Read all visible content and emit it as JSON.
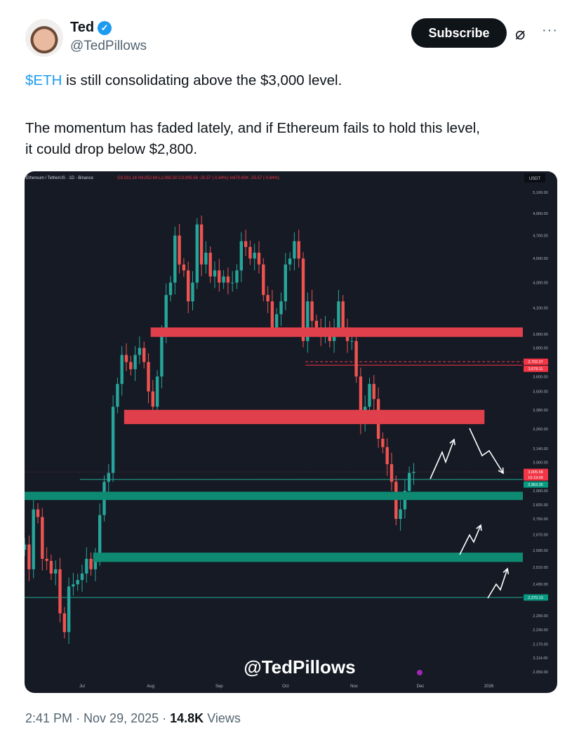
{
  "tweet": {
    "author_name": "Ted",
    "verified_icon": "verified-badge-icon",
    "handle": "@TedPillows",
    "subscribe_label": "Subscribe",
    "more_icon": "more-icon",
    "cashtag": "$ETH",
    "line1_rest": " is still consolidating above the $3,000 level.",
    "line2": "The momentum has faded lately, and if Ethereum fails to hold this level,",
    "line3": "it could drop below $2,800.",
    "time": "2:41 PM",
    "date": "Nov 29, 2025",
    "views_count": "14.8K",
    "views_label": "Views"
  },
  "chart_data": {
    "type": "candlestick",
    "header": "Ethereum / TetherUS · 1D · Binance",
    "ohlc_text": "O3,031.14 H3,052.64 L2,992.50 C3,005.58 -25.57 (-0.84%) Vol70.83K -25.57 (-0.84%)",
    "currency": "USDT",
    "y_scale": "log",
    "ylim": [
      2059,
      5100
    ],
    "y_ticks": [
      "5,100.00",
      "4,900.00",
      "4,700.00",
      "4,500.00",
      "4,300.00",
      "4,100.00",
      "3,900.00",
      "3,800.00",
      "3,600.00",
      "3,500.00",
      "3,380.00",
      "3,260.00",
      "3,140.00",
      "3,060.00",
      "2,900.00",
      "2,825.00",
      "2,750.00",
      "2,670.00",
      "2,590.00",
      "2,510.00",
      "2,430.00",
      "2,290.00",
      "2,230.00",
      "2,170.00",
      "2,114.00",
      "2,059.00"
    ],
    "x_ticks": [
      [
        "2025-07-01",
        "Jul"
      ],
      [
        "2025-08-01",
        "Aug"
      ],
      [
        "2025-09-01",
        "Sep"
      ],
      [
        "2025-10-01",
        "Oct"
      ],
      [
        "2025-11-01",
        "Nov"
      ],
      [
        "2025-12-01",
        "Dec"
      ],
      [
        "2026-01-01",
        "2026"
      ]
    ],
    "xlim": [
      "2025-06-05",
      "2026-01-25"
    ],
    "price_labels": [
      {
        "text": "3,702.07",
        "value": 3702.07,
        "color": "#f23645"
      },
      {
        "text": "3,678.11",
        "value": 3678.11,
        "color": "#f23645"
      },
      {
        "text": "3,005.58",
        "value": 3005.58,
        "color": "#f23645",
        "sub": "15:19:09"
      },
      {
        "text": "2,963.35",
        "value": 2963.35,
        "color": "#089981"
      },
      {
        "text": "2,370.13",
        "value": 2370.13,
        "color": "#089981"
      }
    ],
    "zones": [
      {
        "type": "resistance",
        "from": "2025-08-01",
        "low": 3880,
        "high": 3950,
        "color": "#e0404b"
      },
      {
        "type": "resistance",
        "from": "2025-07-20",
        "to": "2025-12-30",
        "low": 3290,
        "high": 3380,
        "color": "#e0404b"
      },
      {
        "type": "support",
        "from": "2025-06-05",
        "low": 2850,
        "high": 2895,
        "color": "#0f8a72"
      },
      {
        "type": "support",
        "from": "2025-07-06",
        "low": 2535,
        "high": 2580,
        "color": "#0f8a72"
      }
    ],
    "lines": [
      {
        "value": 3702.07,
        "from": "2025-10-10",
        "style": "dashed",
        "color": "#f23645"
      },
      {
        "value": 3678.11,
        "from": "2025-10-10",
        "style": "solid",
        "color": "#f23645"
      },
      {
        "value": 2963.35,
        "from": "2025-06-30",
        "style": "solid",
        "color": "#22ab94"
      },
      {
        "value": 2370.13,
        "from": "2025-06-05",
        "style": "solid",
        "color": "#22ab94"
      },
      {
        "value": 3005.58,
        "from": "2025-06-05",
        "style": "dotted",
        "color": "#7a3b44"
      }
    ],
    "closes": [
      [
        "2025-06-05",
        2620
      ],
      [
        "2025-06-07",
        2500
      ],
      [
        "2025-06-09",
        2800
      ],
      [
        "2025-06-11",
        2760
      ],
      [
        "2025-06-13",
        2550
      ],
      [
        "2025-06-15",
        2540
      ],
      [
        "2025-06-17",
        2480
      ],
      [
        "2025-06-19",
        2500
      ],
      [
        "2025-06-21",
        2300
      ],
      [
        "2025-06-23",
        2220
      ],
      [
        "2025-06-25",
        2420
      ],
      [
        "2025-06-27",
        2430
      ],
      [
        "2025-06-29",
        2450
      ],
      [
        "2025-07-01",
        2480
      ],
      [
        "2025-07-03",
        2550
      ],
      [
        "2025-07-05",
        2500
      ],
      [
        "2025-07-07",
        2560
      ],
      [
        "2025-07-09",
        2770
      ],
      [
        "2025-07-11",
        2950
      ],
      [
        "2025-07-13",
        3000
      ],
      [
        "2025-07-15",
        3400
      ],
      [
        "2025-07-17",
        3550
      ],
      [
        "2025-07-19",
        3750
      ],
      [
        "2025-07-21",
        3700
      ],
      [
        "2025-07-23",
        3650
      ],
      [
        "2025-07-25",
        3750
      ],
      [
        "2025-07-27",
        3800
      ],
      [
        "2025-07-29",
        3700
      ],
      [
        "2025-07-31",
        3500
      ],
      [
        "2025-08-02",
        3400
      ],
      [
        "2025-08-04",
        3600
      ],
      [
        "2025-08-06",
        3900
      ],
      [
        "2025-08-08",
        4200
      ],
      [
        "2025-08-10",
        4300
      ],
      [
        "2025-08-12",
        4700
      ],
      [
        "2025-08-14",
        4450
      ],
      [
        "2025-08-16",
        4400
      ],
      [
        "2025-08-18",
        4150
      ],
      [
        "2025-08-20",
        4300
      ],
      [
        "2025-08-22",
        4800
      ],
      [
        "2025-08-24",
        4450
      ],
      [
        "2025-08-26",
        4550
      ],
      [
        "2025-08-28",
        4350
      ],
      [
        "2025-08-30",
        4400
      ],
      [
        "2025-09-01",
        4300
      ],
      [
        "2025-09-03",
        4350
      ],
      [
        "2025-09-05",
        4300
      ],
      [
        "2025-09-07",
        4300
      ],
      [
        "2025-09-09",
        4400
      ],
      [
        "2025-09-11",
        4650
      ],
      [
        "2025-09-13",
        4600
      ],
      [
        "2025-09-15",
        4500
      ],
      [
        "2025-09-17",
        4550
      ],
      [
        "2025-09-19",
        4450
      ],
      [
        "2025-09-21",
        4200
      ],
      [
        "2025-09-23",
        4150
      ],
      [
        "2025-09-25",
        3950
      ],
      [
        "2025-09-27",
        4050
      ],
      [
        "2025-09-29",
        4150
      ],
      [
        "2025-10-01",
        4450
      ],
      [
        "2025-10-03",
        4500
      ],
      [
        "2025-10-05",
        4650
      ],
      [
        "2025-10-07",
        4500
      ],
      [
        "2025-10-09",
        3850
      ],
      [
        "2025-10-11",
        4150
      ],
      [
        "2025-10-13",
        4000
      ],
      [
        "2025-10-15",
        3950
      ],
      [
        "2025-10-17",
        3900
      ],
      [
        "2025-10-19",
        3950
      ],
      [
        "2025-10-21",
        3850
      ],
      [
        "2025-10-23",
        3950
      ],
      [
        "2025-10-25",
        4150
      ],
      [
        "2025-10-27",
        3950
      ],
      [
        "2025-10-29",
        3850
      ],
      [
        "2025-10-31",
        3850
      ],
      [
        "2025-11-02",
        3600
      ],
      [
        "2025-11-04",
        3300
      ],
      [
        "2025-11-06",
        3400
      ],
      [
        "2025-11-08",
        3550
      ],
      [
        "2025-11-10",
        3450
      ],
      [
        "2025-11-12",
        3200
      ],
      [
        "2025-11-14",
        3150
      ],
      [
        "2025-11-16",
        3050
      ],
      [
        "2025-11-18",
        2950
      ],
      [
        "2025-11-20",
        2750
      ],
      [
        "2025-11-22",
        2800
      ],
      [
        "2025-11-24",
        2900
      ],
      [
        "2025-11-26",
        3000
      ],
      [
        "2025-11-28",
        3005.58
      ]
    ],
    "colors": {
      "up": "#26a69a",
      "down": "#ef5350",
      "background": "#161a25",
      "annotation_arrows": "#ffffff"
    },
    "watermark": "@TedPillows"
  }
}
